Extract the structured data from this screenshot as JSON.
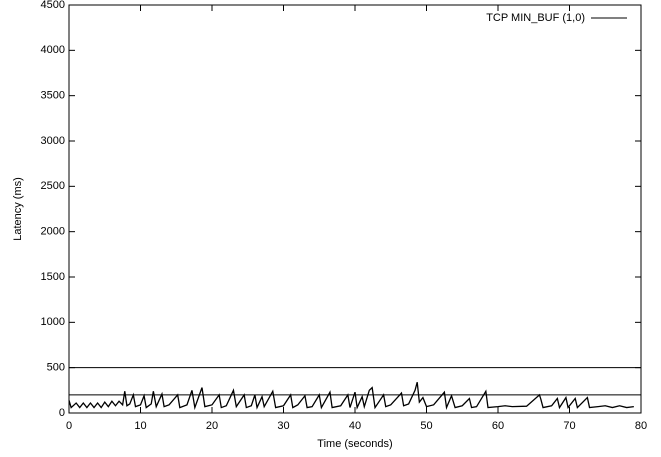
{
  "chart_data": {
    "type": "line",
    "x_label": "Time (seconds)",
    "y_label": "Latency (ms)",
    "xlim": [
      0,
      80
    ],
    "ylim": [
      0,
      4500
    ],
    "xticks": [
      0,
      10,
      20,
      30,
      40,
      50,
      60,
      70,
      80
    ],
    "yticks": [
      0,
      500,
      1000,
      1500,
      2000,
      2500,
      3000,
      3500,
      4000,
      4500
    ],
    "hlines": [
      500,
      200
    ],
    "legend": "top-right",
    "x": [
      0,
      0.3,
      1,
      1.5,
      2,
      2.5,
      3,
      3.5,
      4,
      4.5,
      5,
      5.5,
      6,
      6.5,
      7,
      7.5,
      7.8,
      8.1,
      8.5,
      9,
      9.3,
      10,
      10.5,
      10.8,
      11.5,
      11.8,
      12.2,
      13,
      13.3,
      14,
      15.2,
      15.5,
      16.5,
      17.2,
      17.6,
      18.6,
      19,
      20,
      21,
      21.3,
      22,
      23,
      23.4,
      24.5,
      24.8,
      25.5,
      26,
      26.3,
      27,
      27.3,
      28.5,
      28.9,
      30,
      31,
      31.3,
      32,
      33,
      33.3,
      34,
      35,
      35.3,
      36.5,
      36.8,
      38,
      39,
      39.3,
      40,
      40.3,
      41,
      41.3,
      42,
      42.4,
      42.8,
      44,
      44.3,
      45,
      46.5,
      46.8,
      47.5,
      48.4,
      48.7,
      49,
      49.5,
      50,
      51,
      52.5,
      52.8,
      53.5,
      54,
      55,
      56,
      56.3,
      57,
      58.3,
      58.6,
      60,
      61,
      62,
      64,
      65.8,
      66,
      66.3,
      67.5,
      68.3,
      68.6,
      69.5,
      69.8,
      70.8,
      71.1,
      72.5,
      72.8,
      74,
      75,
      76,
      77,
      78,
      79
    ],
    "series": [
      {
        "name": "TCP MIN_BUF (1,0)",
        "color": "#000000",
        "values": [
          140,
          60,
          110,
          60,
          110,
          60,
          110,
          60,
          110,
          60,
          120,
          70,
          130,
          80,
          130,
          90,
          240,
          80,
          100,
          200,
          70,
          90,
          190,
          60,
          100,
          240,
          70,
          210,
          70,
          90,
          200,
          60,
          90,
          250,
          60,
          280,
          70,
          90,
          200,
          60,
          80,
          250,
          70,
          200,
          60,
          80,
          200,
          60,
          180,
          70,
          240,
          60,
          80,
          200,
          60,
          90,
          190,
          60,
          70,
          200,
          60,
          230,
          60,
          80,
          200,
          60,
          230,
          60,
          180,
          70,
          250,
          280,
          60,
          200,
          70,
          90,
          220,
          80,
          100,
          250,
          340,
          120,
          170,
          70,
          90,
          230,
          60,
          190,
          60,
          80,
          160,
          60,
          70,
          240,
          60,
          70,
          80,
          70,
          75,
          200,
          150,
          60,
          80,
          160,
          60,
          170,
          60,
          160,
          60,
          170,
          60,
          70,
          80,
          60,
          80,
          60,
          70
        ]
      }
    ]
  }
}
